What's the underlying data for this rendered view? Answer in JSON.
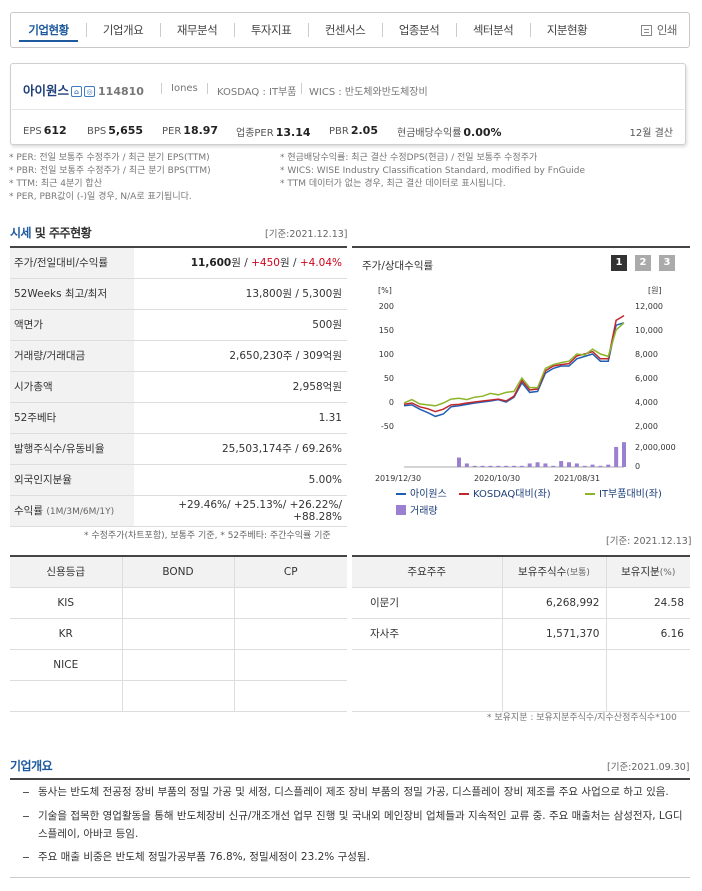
{
  "tabs": [
    "기업현황",
    "기업개요",
    "재무분석",
    "투자지표",
    "컨센서스",
    "업종분석",
    "섹터분석",
    "지분현황"
  ],
  "print_label": "인쇄",
  "company": {
    "name": "아이원스",
    "code": "114810",
    "eng": "Iones",
    "market": "KOSDAQ : IT부품",
    "wics": "WICS : 반도체와반도체장비",
    "eps_label": "EPS",
    "eps": "612",
    "bps_label": "BPS",
    "bps": "5,655",
    "per_label": "PER",
    "per": "18.97",
    "iper_label": "업종PER",
    "iper": "13.14",
    "pbr_label": "PBR",
    "pbr": "2.05",
    "div_label": "현금배당수익률",
    "div": "0.00%",
    "fy": "12월 결산"
  },
  "notes_left": [
    "* PER: 전일 보통주 수정주가 / 최근 분기 EPS(TTM)",
    "* PBR: 전일 보통주 수정주가 / 최근 분기 BPS(TTM)",
    "* TTM: 최근 4분기 합산",
    "* PER, PBR값이 (-)일 경우, N/A로 표기됩니다."
  ],
  "notes_right": [
    "* 현금배당수익률: 최근 결산 수정DPS(현금) / 전일 보통주 수정주가",
    "* WICS: WISE Industry Classification Standard, modified by FnGuide",
    "* TTM 데이터가 없는 경우, 최근 결산 데이터로 표시됩니다."
  ],
  "section1": {
    "title_a": "시세",
    "title_b": " 및 주주현황",
    "basis": "[기준:2021.12.13]"
  },
  "price_rows": [
    {
      "label": "주가/전일대비/수익률",
      "v1": "11,600",
      "u1": "원 / ",
      "v2": "+450",
      "u2": "원 / ",
      "v3": "+4.04%"
    },
    {
      "label": "52Weeks 최고/최저",
      "value": "13,800원 / 5,300원"
    },
    {
      "label": "액면가",
      "value": "500원"
    },
    {
      "label": "거래량/거래대금",
      "value": "2,650,230주 / 309억원"
    },
    {
      "label": "시가총액",
      "value": "2,958억원"
    },
    {
      "label": "52주베타",
      "value": "1.31"
    },
    {
      "label": "발행주식수/유동비율",
      "value": "25,503,174주 / 69.26%"
    },
    {
      "label": "외국인지분율",
      "value": "5.00%"
    },
    {
      "label": "수익률",
      "sub": "(1M/3M/6M/1Y)",
      "value": "+29.46%/ +25.13%/ +26.22%/ +88.28%"
    }
  ],
  "price_footnote": "* 수정주가(차트포함), 보통주 기준, * 52주베타: 주간수익률 기준",
  "chart_data": {
    "type": "line",
    "title": "주가/상대수익률",
    "pages": [
      "1",
      "2",
      "3"
    ],
    "left_unit": "[%]",
    "right_unit": "[원]",
    "left_ticks": [
      "200",
      "150",
      "100",
      "50",
      "0",
      "-50"
    ],
    "right_ticks": [
      "12,000",
      "10,000",
      "8,000",
      "6,000",
      "4,000",
      "2,000"
    ],
    "vol_ticks": [
      "2,000,000",
      "0"
    ],
    "x_labels": [
      "2019/12/30",
      "2020/10/30",
      "2021/08/31"
    ],
    "ylim": [
      -50,
      200
    ],
    "series": [
      {
        "name": "아이원스",
        "color": "#1f5fb3",
        "values": [
          -8,
          -6,
          -15,
          -22,
          -30,
          -25,
          -10,
          -8,
          -5,
          -2,
          0,
          2,
          5,
          0,
          10,
          40,
          20,
          22,
          60,
          70,
          75,
          75,
          90,
          95,
          100,
          85,
          85,
          160,
          165
        ]
      },
      {
        "name": "KOSDAQ대비(좌)",
        "color": "#c0282d",
        "values": [
          -5,
          -2,
          -10,
          -14,
          -20,
          -15,
          -6,
          -5,
          -2,
          0,
          2,
          4,
          6,
          2,
          12,
          45,
          25,
          27,
          65,
          75,
          78,
          80,
          96,
          100,
          105,
          90,
          90,
          170,
          180
        ]
      },
      {
        "name": "IT부품대비(좌)",
        "color": "#8db52c",
        "values": [
          -2,
          5,
          -4,
          -6,
          -8,
          -2,
          6,
          8,
          5,
          10,
          12,
          18,
          15,
          20,
          22,
          50,
          30,
          30,
          70,
          78,
          82,
          85,
          100,
          98,
          110,
          100,
          95,
          150,
          165
        ]
      }
    ],
    "volume": {
      "name": "거래량",
      "color": "#9b7fd0",
      "values": [
        0,
        0,
        0,
        0,
        0,
        0,
        0,
        0.8,
        0.3,
        0.1,
        0.1,
        0.1,
        0.1,
        0.1,
        0.1,
        0.1,
        0.3,
        0.4,
        0.3,
        0.1,
        0.5,
        0.4,
        0.3,
        0.1,
        0.2,
        0.1,
        0.2,
        1.7,
        2.1
      ]
    }
  },
  "credit": {
    "headers": [
      "신용등급",
      "BOND",
      "CP"
    ],
    "rows": [
      [
        "KIS",
        "",
        ""
      ],
      [
        "KR",
        "",
        ""
      ],
      [
        "NICE",
        "",
        ""
      ],
      [
        "",
        "",
        ""
      ]
    ]
  },
  "holders": {
    "basis": "[기준: 2021.12.13]",
    "headers": [
      "주요주주",
      "보유주식수",
      "(보통)",
      "보유지분",
      "(%)"
    ],
    "rows": [
      [
        "이문기",
        "6,268,992",
        "24.58"
      ],
      [
        "자사주",
        "1,571,370",
        "6.16"
      ]
    ],
    "footnote": "* 보유지분 : 보유지분주식수/지수산정주식수*100"
  },
  "overview": {
    "title": "기업개요",
    "basis": "[기준:2021.09.30]",
    "items": [
      "동사는 반도체 전공정 장비 부품의 정밀 가공 및 세정, 디스플레이 제조 장비 부품의 정밀 가공, 디스플레이 장비 제조를 주요 사업으로 하고 있음.",
      "기술을 접목한 영업활동을 통해 반도체장비 신규/개조개선 업무 진행 및 국내외 메인장비 업체들과 지속적인 교류 중. 주요 매출처는 삼성전자, LG디스플레이, 아바코 등임.",
      "주요 매출 비중은 반도체 정밀가공부품 76.8%, 정밀세정이 23.2% 구성됨."
    ]
  }
}
